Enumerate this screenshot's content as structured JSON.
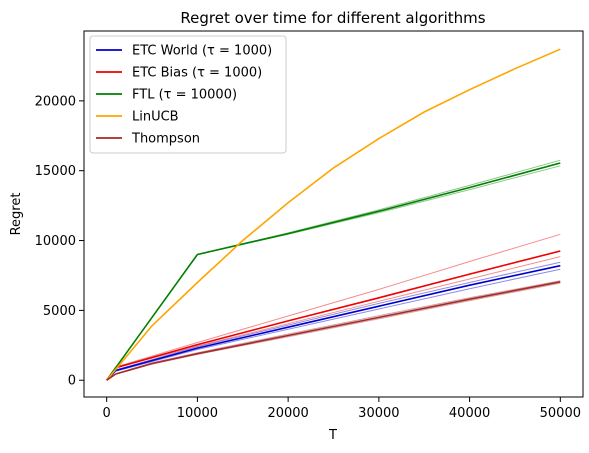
{
  "chart_data": {
    "type": "line",
    "title": "Regret over time for different algorithms",
    "xlabel": "T",
    "ylabel": "Regret",
    "xlim": [
      -2500,
      52500
    ],
    "ylim": [
      -1200,
      25000
    ],
    "xticks": [
      0,
      10000,
      20000,
      30000,
      40000,
      50000
    ],
    "yticks": [
      0,
      5000,
      10000,
      15000,
      20000
    ],
    "grid": false,
    "legend_position": "top-left",
    "series": [
      {
        "name": "ETC World (τ = 1000)",
        "color": "#0000cc",
        "x": [
          0,
          1000,
          10000,
          20000,
          30000,
          40000,
          50000
        ],
        "y": [
          0,
          700,
          2300,
          3800,
          5300,
          6800,
          8200
        ],
        "band_runs": [
          [
            0,
            750,
            2400,
            3950,
            5500,
            7000,
            8450
          ],
          [
            0,
            650,
            2200,
            3650,
            5100,
            6550,
            7950
          ]
        ]
      },
      {
        "name": "ETC Bias (τ = 1000)",
        "color": "#ee0000",
        "x": [
          0,
          1000,
          10000,
          20000,
          30000,
          40000,
          50000
        ],
        "y": [
          0,
          900,
          2550,
          4250,
          5900,
          7600,
          9250
        ],
        "band_runs": [
          [
            0,
            950,
            2700,
            4600,
            6500,
            8500,
            10450
          ],
          [
            0,
            880,
            2450,
            4050,
            5650,
            7250,
            8850
          ]
        ]
      },
      {
        "name": "FTL (τ = 10000)",
        "color": "#008000",
        "x": [
          0,
          10000,
          20000,
          30000,
          40000,
          50000
        ],
        "y": [
          0,
          9000,
          10500,
          12100,
          13800,
          15550
        ],
        "band_runs": [
          [
            0,
            9000,
            10550,
            12200,
            13950,
            15750
          ],
          [
            0,
            9000,
            10450,
            12000,
            13650,
            15350
          ]
        ]
      },
      {
        "name": "LinUCB",
        "color": "#ffa500",
        "x": [
          0,
          5000,
          10000,
          15000,
          20000,
          25000,
          30000,
          35000,
          40000,
          45000,
          50000
        ],
        "y": [
          0,
          3900,
          7000,
          10000,
          12700,
          15200,
          17300,
          19200,
          20800,
          22300,
          23700
        ],
        "band_runs": []
      },
      {
        "name": "Thompson",
        "color": "#a52a2a",
        "x": [
          0,
          1000,
          5000,
          10000,
          20000,
          30000,
          40000,
          50000
        ],
        "y": [
          0,
          450,
          1200,
          1900,
          3200,
          4500,
          5800,
          7050
        ],
        "band_runs": [
          [
            0,
            470,
            1250,
            1970,
            3300,
            4620,
            5900,
            7120
          ],
          [
            0,
            430,
            1150,
            1850,
            3120,
            4400,
            5700,
            6950
          ]
        ]
      }
    ]
  }
}
